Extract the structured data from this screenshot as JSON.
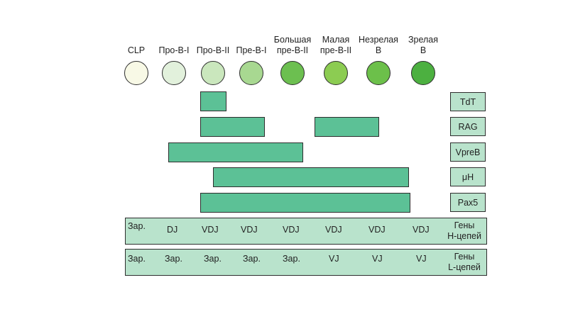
{
  "stages": [
    {
      "label": "CLP",
      "color": "#f8f9e6"
    },
    {
      "label": "Про-B-I",
      "color": "#e2f1dc"
    },
    {
      "label": "Про-B-II",
      "color": "#cae7bd"
    },
    {
      "label": "Пре-B-I",
      "color": "#a8d891"
    },
    {
      "label": "Большая\nпре-B-II",
      "color": "#6cbf50"
    },
    {
      "label": "Малая\nпре-B-II",
      "color": "#8ccc52"
    },
    {
      "label": "Незрелая\nB",
      "color": "#6cc04a"
    },
    {
      "label": "Зрелая\nB",
      "color": "#4cb040"
    }
  ],
  "markers": [
    "TdT",
    "RAG",
    "VpreB",
    "μH",
    "Pax5"
  ],
  "h_chain": {
    "label": "Гены\nН-цепей",
    "values": [
      "Зар.",
      "DJ",
      "VDJ",
      "VDJ",
      "VDJ",
      "VDJ",
      "VDJ",
      "VDJ"
    ]
  },
  "l_chain": {
    "label": "Гены\nL-цепей",
    "values": [
      "Зар.",
      "Зар.",
      "Зар.",
      "Зар.",
      "Зар.",
      "VJ",
      "VJ",
      "VJ"
    ]
  },
  "colors": {
    "bar": "#5cc196",
    "box": "#b9e3cc"
  }
}
